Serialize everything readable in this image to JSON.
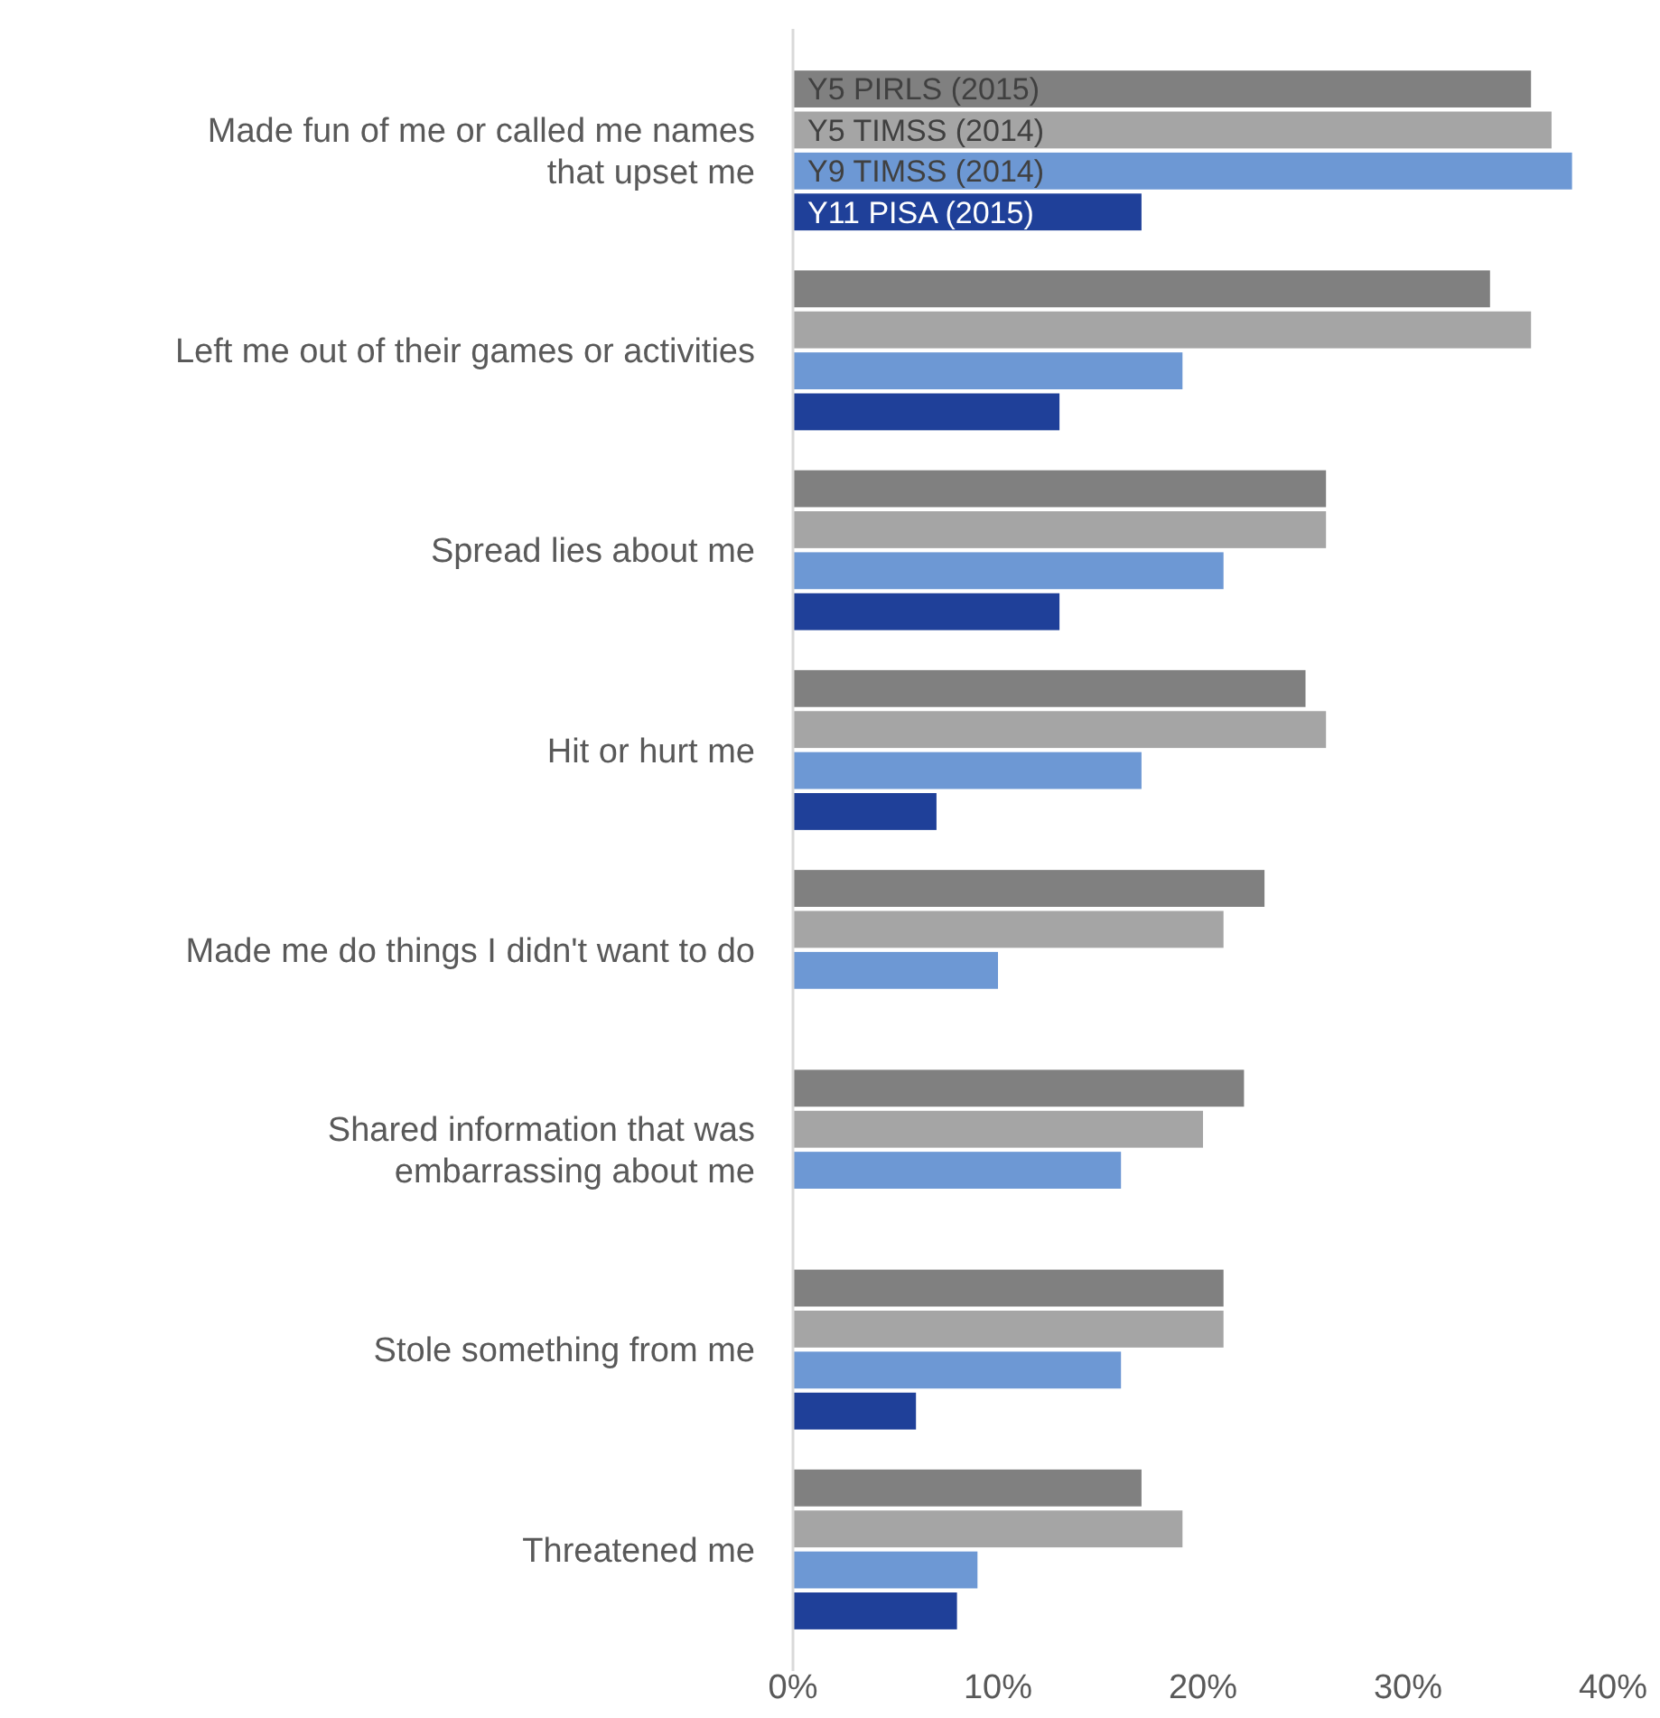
{
  "chart_data": {
    "type": "bar",
    "orientation": "horizontal",
    "categories": [
      "Made fun of me or called me names\nthat upset me",
      "Left me out of their games or activities",
      "Spread lies about me",
      "Hit or hurt me",
      "Made me do things I didn't want to do",
      "Shared information that was\nembarrassing about me",
      "Stole something from me",
      "Threatened me"
    ],
    "series": [
      {
        "name": "Y5 PIRLS (2015)",
        "color": "#808080",
        "values": [
          36,
          34,
          26,
          25,
          23,
          22,
          21,
          17
        ]
      },
      {
        "name": "Y5 TIMSS (2014)",
        "color": "#a5a5a5",
        "values": [
          37,
          36,
          26,
          26,
          21,
          20,
          21,
          19
        ]
      },
      {
        "name": "Y9 TIMSS (2014)",
        "color": "#6d98d4",
        "values": [
          38,
          19,
          21,
          17,
          10,
          16,
          16,
          9
        ]
      },
      {
        "name": "Y11 PISA (2015)",
        "color": "#1f4099",
        "values": [
          17,
          13,
          13,
          7,
          null,
          null,
          6,
          8
        ]
      }
    ],
    "xlim": [
      0,
      40
    ],
    "xticks": [
      {
        "value": 0,
        "label": "0%"
      },
      {
        "value": 10,
        "label": "10%"
      },
      {
        "value": 20,
        "label": "20%"
      },
      {
        "value": 30,
        "label": "30%"
      },
      {
        "value": 40,
        "label": "40%"
      }
    ],
    "legend": false,
    "grid": false
  }
}
